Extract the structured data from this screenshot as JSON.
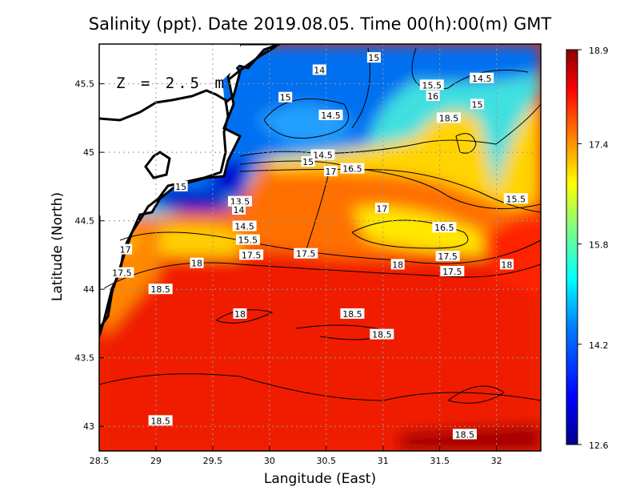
{
  "chart_data": {
    "type": "heatmap",
    "title": "Salinity (ppt). Date 2019.08.05. Time 00(h):00(m) GMT",
    "xlabel": "Langitude (East)",
    "ylabel": "Latitude (North)",
    "annotation": "Z = 2.5 m",
    "xlim": [
      28.5,
      32.39
    ],
    "ylim": [
      42.82,
      45.79
    ],
    "xticks": [
      "28.5",
      "29",
      "29.5",
      "30",
      "30.5",
      "31",
      "31.5",
      "32"
    ],
    "xtick_values": [
      28.5,
      29,
      29.5,
      30,
      30.5,
      31,
      31.5,
      32
    ],
    "yticks": [
      "45.5",
      "45",
      "44.5",
      "44",
      "43.5",
      "43"
    ],
    "ytick_values": [
      45.5,
      45,
      44.5,
      44,
      43.5,
      43
    ],
    "grid": true,
    "colorbar": {
      "min": 12.6,
      "max": 18.9,
      "labels": [
        "18.9",
        "17.4",
        "15.8",
        "14.2",
        "12.6"
      ],
      "label_values": [
        18.9,
        17.4,
        15.8,
        14.2,
        12.6
      ],
      "colors": [
        "#00008c",
        "#0000ff",
        "#0080ff",
        "#00ffff",
        "#80ff80",
        "#ffff00",
        "#ff8000",
        "#ff0000",
        "#8c0000"
      ]
    },
    "contour_labels": [
      {
        "text": "14",
        "lon": 30.44,
        "lat": 45.6
      },
      {
        "text": "15",
        "lon": 30.92,
        "lat": 45.69
      },
      {
        "text": "15.5",
        "lon": 31.43,
        "lat": 45.49
      },
      {
        "text": "14.5",
        "lon": 31.87,
        "lat": 45.54
      },
      {
        "text": "15",
        "lon": 30.14,
        "lat": 45.4
      },
      {
        "text": "16",
        "lon": 31.44,
        "lat": 45.41
      },
      {
        "text": "15",
        "lon": 31.83,
        "lat": 45.35
      },
      {
        "text": "14.5",
        "lon": 30.54,
        "lat": 45.27
      },
      {
        "text": "18.5",
        "lon": 31.58,
        "lat": 45.25
      },
      {
        "text": "14.5",
        "lon": 30.47,
        "lat": 44.98
      },
      {
        "text": "15",
        "lon": 30.34,
        "lat": 44.93
      },
      {
        "text": "17",
        "lon": 30.54,
        "lat": 44.86
      },
      {
        "text": "16.5",
        "lon": 30.73,
        "lat": 44.88
      },
      {
        "text": "15",
        "lon": 29.22,
        "lat": 44.75
      },
      {
        "text": "13.5",
        "lon": 29.74,
        "lat": 44.64
      },
      {
        "text": "14",
        "lon": 29.73,
        "lat": 44.58
      },
      {
        "text": "15.5",
        "lon": 32.17,
        "lat": 44.66
      },
      {
        "text": "17",
        "lon": 30.99,
        "lat": 44.59
      },
      {
        "text": "14.5",
        "lon": 29.78,
        "lat": 44.46
      },
      {
        "text": "16.5",
        "lon": 31.54,
        "lat": 44.45
      },
      {
        "text": "15.5",
        "lon": 29.81,
        "lat": 44.36
      },
      {
        "text": "17",
        "lon": 28.73,
        "lat": 44.29
      },
      {
        "text": "17.5",
        "lon": 29.84,
        "lat": 44.25
      },
      {
        "text": "17.5",
        "lon": 30.32,
        "lat": 44.26
      },
      {
        "text": "18",
        "lon": 29.36,
        "lat": 44.19
      },
      {
        "text": "18",
        "lon": 31.13,
        "lat": 44.18
      },
      {
        "text": "17.5",
        "lon": 31.57,
        "lat": 44.24
      },
      {
        "text": "17.5",
        "lon": 31.61,
        "lat": 44.13
      },
      {
        "text": "18",
        "lon": 32.09,
        "lat": 44.18
      },
      {
        "text": "17.5",
        "lon": 28.7,
        "lat": 44.12
      },
      {
        "text": "18.5",
        "lon": 29.04,
        "lat": 44.0
      },
      {
        "text": "18",
        "lon": 29.74,
        "lat": 43.82
      },
      {
        "text": "18.5",
        "lon": 30.73,
        "lat": 43.82
      },
      {
        "text": "18.5",
        "lon": 30.99,
        "lat": 43.67
      },
      {
        "text": "18.5",
        "lon": 29.04,
        "lat": 43.04
      },
      {
        "text": "18.5",
        "lon": 31.72,
        "lat": 42.94
      }
    ]
  }
}
